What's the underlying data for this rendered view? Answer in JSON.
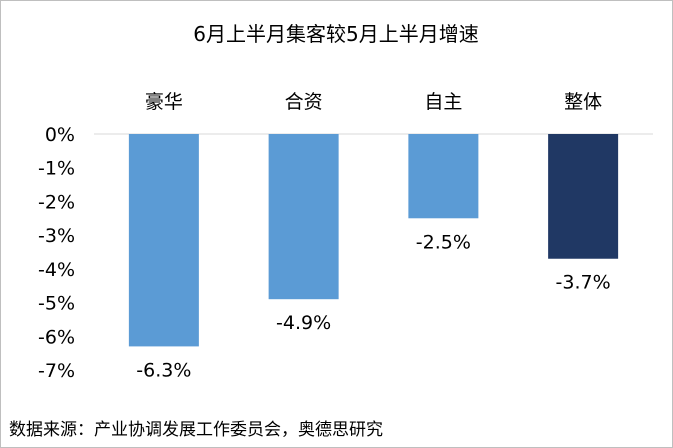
{
  "chart_data": {
    "type": "bar",
    "title": "6月上半月集客较5月上半月增速",
    "categories": [
      "豪华",
      "合资",
      "自主",
      "整体"
    ],
    "values": [
      -6.3,
      -4.9,
      -2.5,
      -3.7
    ],
    "value_labels": [
      "-6.3%",
      "-4.9%",
      "-2.5%",
      "-3.7%"
    ],
    "ylim": [
      -7,
      0
    ],
    "y_ticks": [
      0,
      -1,
      -2,
      -3,
      -4,
      -5,
      -6,
      -7
    ],
    "y_tick_labels": [
      "0%",
      "-1%",
      "-2%",
      "-3%",
      "-4%",
      "-5%",
      "-6%",
      "-7%"
    ],
    "category_label_position": "top",
    "colors": [
      "#5b9bd5",
      "#5b9bd5",
      "#5b9bd5",
      "#203864"
    ],
    "gridlines": false,
    "legend": "none"
  },
  "source_text": "数据来源：产业协调发展工作委员会，奥德思研究"
}
